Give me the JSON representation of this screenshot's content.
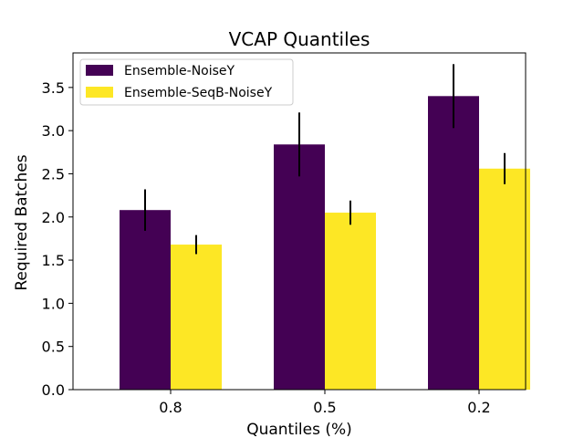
{
  "chart_data": {
    "type": "bar",
    "title": "VCAP Quantiles",
    "xlabel": "Quantiles (%)",
    "ylabel": "Required Batches",
    "categories": [
      "0.8",
      "0.5",
      "0.2"
    ],
    "ylim": [
      0,
      3.9
    ],
    "yticks": [
      "0.0",
      "0.5",
      "1.0",
      "1.5",
      "2.0",
      "2.5",
      "3.0",
      "3.5"
    ],
    "grid": false,
    "legend_position": "top-left",
    "series": [
      {
        "name": "Ensemble-NoiseY",
        "color": "#440154",
        "values": [
          2.08,
          2.84,
          3.4
        ],
        "error": [
          0.24,
          0.37,
          0.37
        ]
      },
      {
        "name": "Ensemble-SeqB-NoiseY",
        "color": "#fde725",
        "values": [
          1.68,
          2.05,
          2.56
        ],
        "error": [
          0.11,
          0.14,
          0.18
        ]
      }
    ]
  }
}
